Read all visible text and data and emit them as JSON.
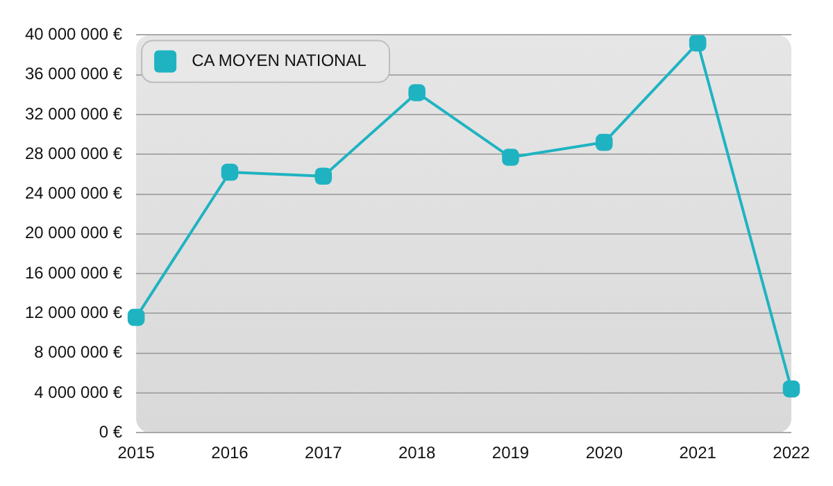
{
  "chart_data": {
    "type": "line",
    "categories": [
      "2015",
      "2016",
      "2017",
      "2018",
      "2019",
      "2020",
      "2021",
      "2022"
    ],
    "series": [
      {
        "name": "CA MOYEN NATIONAL",
        "color": "#1fb3c2",
        "values": [
          11600000,
          26200000,
          25800000,
          34200000,
          27700000,
          29200000,
          39200000,
          4400000
        ]
      }
    ],
    "ylim": [
      0,
      40000000
    ],
    "yticks": [
      {
        "value": 0,
        "label": "0 €"
      },
      {
        "value": 4000000,
        "label": "4 000 000 €"
      },
      {
        "value": 8000000,
        "label": "8 000 000 €"
      },
      {
        "value": 12000000,
        "label": "12 000 000 €"
      },
      {
        "value": 16000000,
        "label": "16 000 000 €"
      },
      {
        "value": 20000000,
        "label": "20 000 000 €"
      },
      {
        "value": 24000000,
        "label": "24 000 000 €"
      },
      {
        "value": 28000000,
        "label": "28 000 000 €"
      },
      {
        "value": 32000000,
        "label": "32 000 000 €"
      },
      {
        "value": 36000000,
        "label": "36 000 000 €"
      },
      {
        "value": 40000000,
        "label": "40 000 000 €"
      }
    ],
    "grid": "y",
    "legend": "top left",
    "marker": "square",
    "line_style": "solid"
  }
}
